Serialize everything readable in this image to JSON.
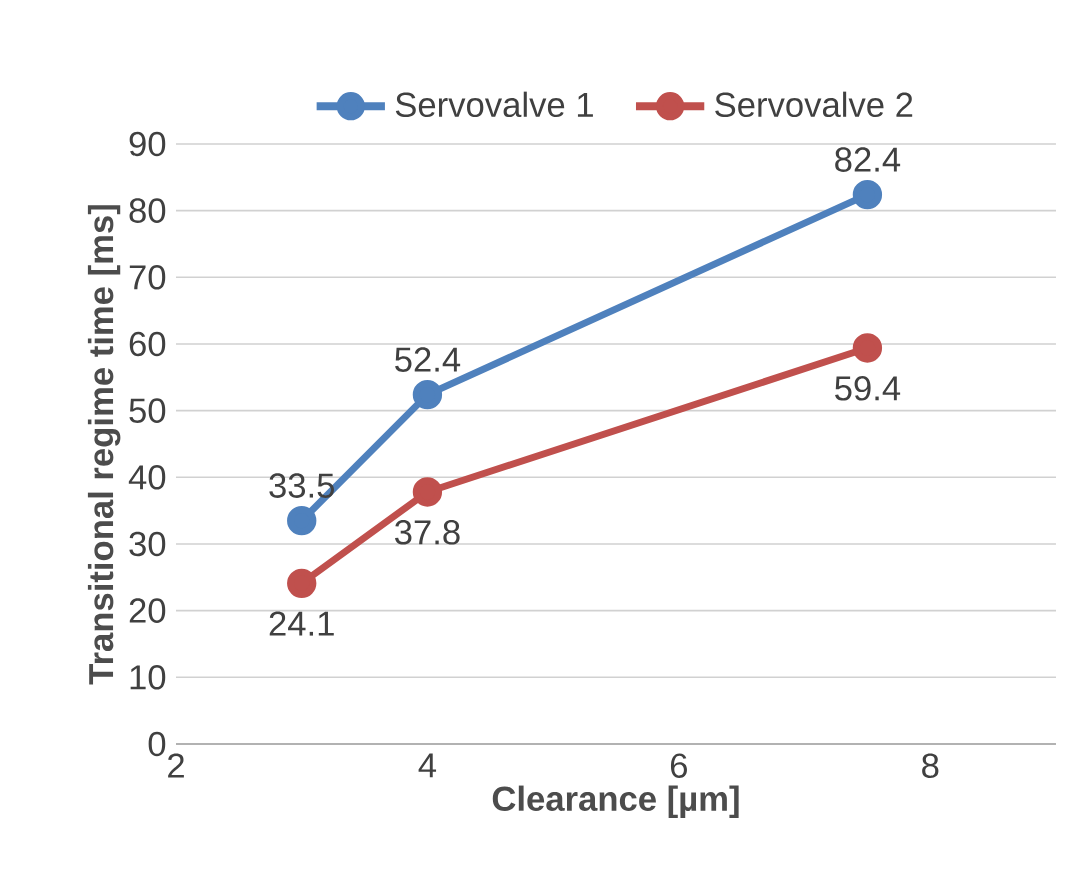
{
  "chart_data": {
    "type": "line",
    "xlabel": "Clearance [µm]",
    "ylabel": "Transitional regime time [ms]",
    "x": [
      3,
      4,
      7.5
    ],
    "series": [
      {
        "name": "Servovalve 1",
        "color": "#4f81bd",
        "values": [
          33.5,
          52.4,
          82.4
        ]
      },
      {
        "name": "Servovalve 2",
        "color": "#c0504d",
        "values": [
          24.1,
          37.8,
          59.4
        ]
      }
    ],
    "xlim": [
      2,
      9
    ],
    "xticks": [
      2,
      4,
      6,
      8
    ],
    "ylim": [
      0,
      90
    ],
    "yticks": [
      0,
      10,
      20,
      30,
      40,
      50,
      60,
      70,
      80,
      90
    ],
    "grid": "y",
    "legend": "top",
    "marker": "circle",
    "line_style": "solid",
    "data_labels": true
  }
}
